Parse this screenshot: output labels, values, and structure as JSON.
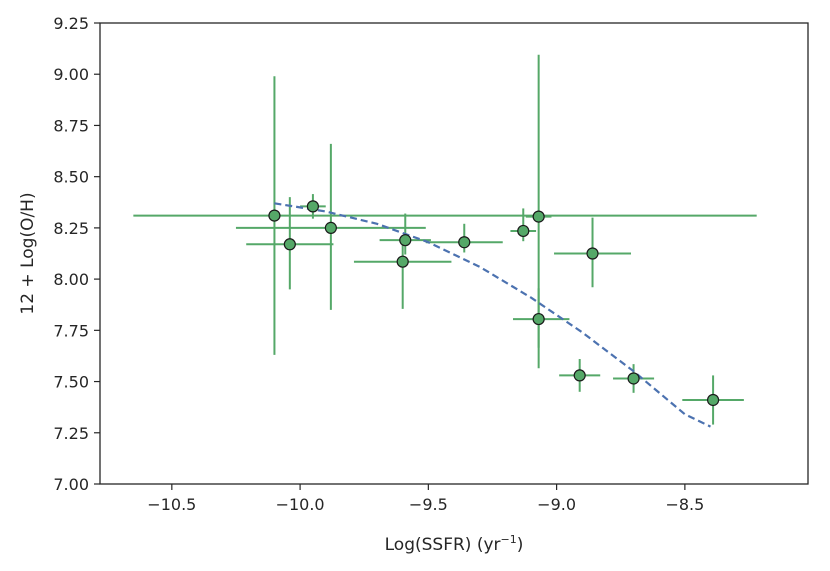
{
  "chart_data": {
    "type": "scatter",
    "title": "",
    "xlabel": {
      "main": "Log(SSFR) (yr",
      "sup": "−1",
      "close": ")"
    },
    "ylabel": "12 + Log(O/H)",
    "xlim": [
      -10.78,
      -8.02
    ],
    "ylim": [
      7.0,
      9.25
    ],
    "xticks": [
      -10.5,
      -10.0,
      -9.5,
      -9.0,
      -8.5
    ],
    "xtick_labels": [
      "−10.5",
      "−10.0",
      "−9.5",
      "−9.0",
      "−8.5"
    ],
    "yticks": [
      7.0,
      7.25,
      7.5,
      7.75,
      8.0,
      8.25,
      8.5,
      8.75,
      9.0,
      9.25
    ],
    "ytick_labels": [
      "7.00",
      "7.25",
      "7.50",
      "7.75",
      "8.00",
      "8.25",
      "8.50",
      "8.75",
      "9.00",
      "9.25"
    ],
    "grid": false,
    "colors": {
      "errorbar": "#55a868",
      "marker_fill": "#55a868",
      "marker_edge": "#1a1a1a",
      "fit": "#4c72b0",
      "spine": "#262626"
    },
    "points": [
      {
        "x": -10.1,
        "y": 8.31,
        "xerr": [
          0.55,
          1.88
        ],
        "yerr": [
          0.68,
          0.68
        ]
      },
      {
        "x": -10.04,
        "y": 8.17,
        "xerr": [
          0.17,
          0.17
        ],
        "yerr": [
          0.22,
          0.23
        ]
      },
      {
        "x": -9.95,
        "y": 8.355,
        "xerr": [
          0.05,
          0.05
        ],
        "yerr": [
          0.06,
          0.06
        ]
      },
      {
        "x": -9.88,
        "y": 8.25,
        "xerr": [
          0.37,
          0.37
        ],
        "yerr": [
          0.4,
          0.41
        ]
      },
      {
        "x": -9.59,
        "y": 8.19,
        "xerr": [
          0.1,
          0.1
        ],
        "yerr": [
          0.07,
          0.13
        ]
      },
      {
        "x": -9.6,
        "y": 8.085,
        "xerr": [
          0.19,
          0.19
        ],
        "yerr": [
          0.23,
          0.11
        ]
      },
      {
        "x": -9.36,
        "y": 8.18,
        "xerr": [
          0.15,
          0.15
        ],
        "yerr": [
          0.05,
          0.09
        ]
      },
      {
        "x": -9.13,
        "y": 8.235,
        "xerr": [
          0.05,
          0.05
        ],
        "yerr": [
          0.05,
          0.11
        ]
      },
      {
        "x": -9.07,
        "y": 8.305,
        "xerr": [
          0.05,
          0.05
        ],
        "yerr": [
          0.74,
          0.79
        ]
      },
      {
        "x": -9.07,
        "y": 7.805,
        "xerr": [
          0.1,
          0.12
        ],
        "yerr": [
          0.14,
          0.15
        ]
      },
      {
        "x": -8.86,
        "y": 8.125,
        "xerr": [
          0.15,
          0.15
        ],
        "yerr": [
          0.165,
          0.175
        ]
      },
      {
        "x": -8.91,
        "y": 7.53,
        "xerr": [
          0.08,
          0.08
        ],
        "yerr": [
          0.08,
          0.08
        ]
      },
      {
        "x": -8.7,
        "y": 7.515,
        "xerr": [
          0.08,
          0.08
        ],
        "yerr": [
          0.07,
          0.07
        ]
      },
      {
        "x": -8.39,
        "y": 7.41,
        "xerr": [
          0.12,
          0.12
        ],
        "yerr": [
          0.12,
          0.12
        ]
      }
    ],
    "fit": {
      "style": "dashed",
      "x": [
        -10.1,
        -9.9,
        -9.7,
        -9.5,
        -9.3,
        -9.1,
        -8.9,
        -8.7,
        -8.5,
        -8.4
      ],
      "y": [
        8.37,
        8.33,
        8.27,
        8.18,
        8.06,
        7.91,
        7.74,
        7.55,
        7.34,
        7.28
      ]
    }
  }
}
